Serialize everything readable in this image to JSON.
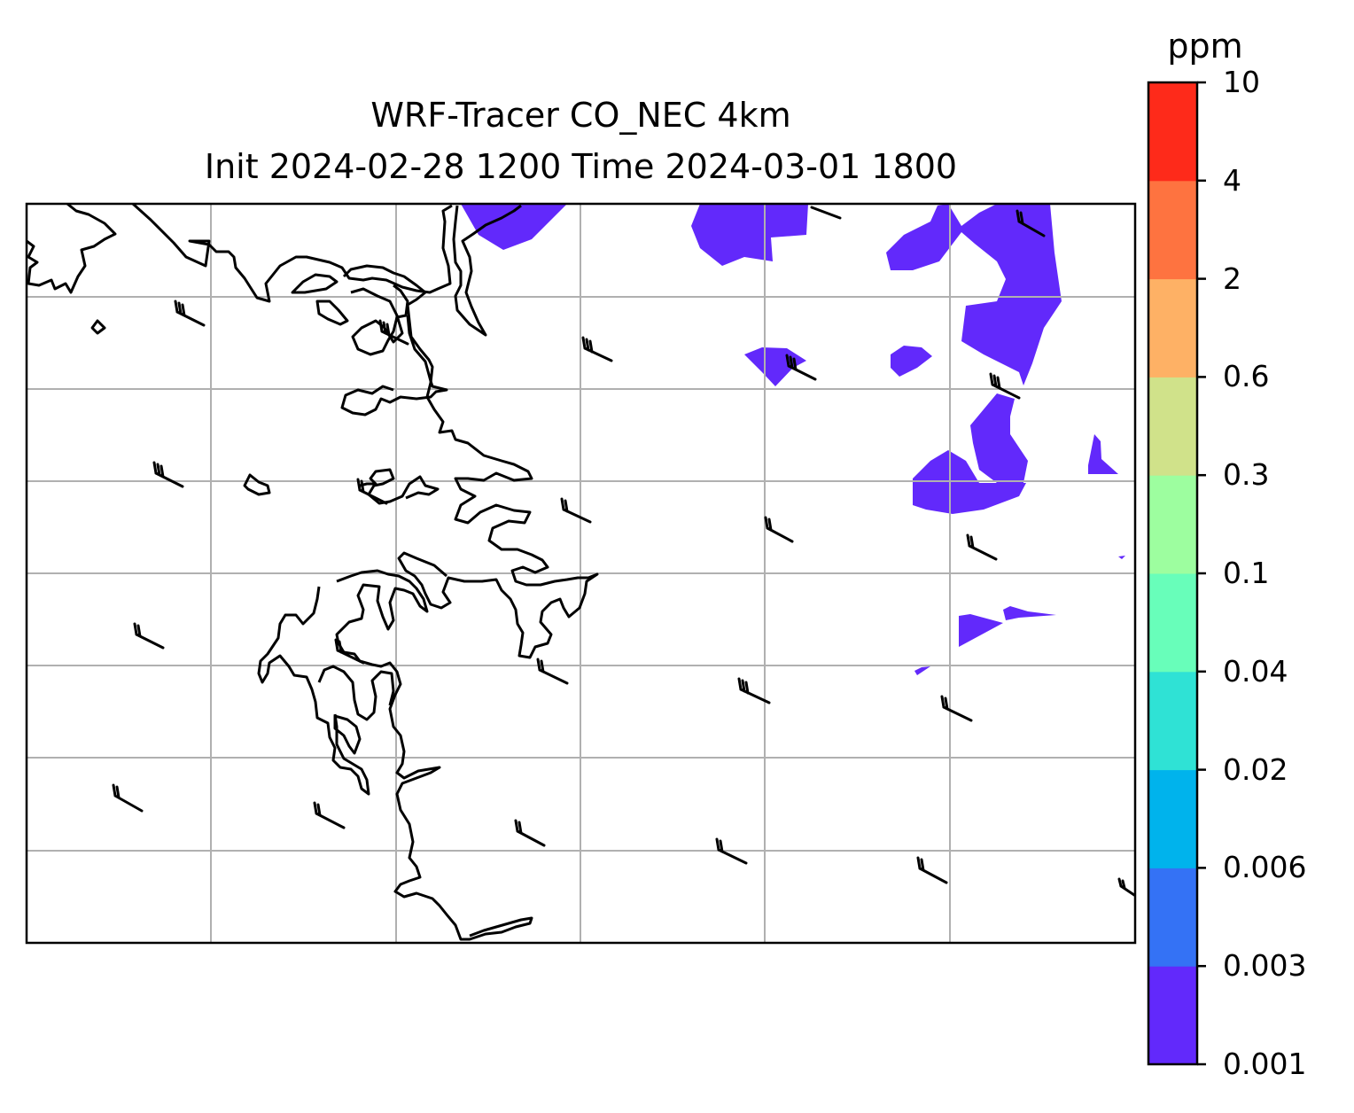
{
  "title_line1": "WRF-Tracer CO_NEC 4km",
  "title_line2": "Init 2024-02-28 1200 Time 2024-03-01 1800",
  "colorbar": {
    "label": "ppm",
    "ticks": [
      "0.001",
      "0.003",
      "0.006",
      "0.02",
      "0.04",
      "0.1",
      "0.3",
      "0.6",
      "2",
      "4",
      "10"
    ],
    "colors": [
      "#6229fb",
      "#3472f5",
      "#00b3ec",
      "#2fe2d5",
      "#68feba",
      "#9dfe9f",
      "#d0e28a",
      "#feb165",
      "#fe7340",
      "#fe2a1a"
    ]
  },
  "map": {
    "gridlines": true,
    "tracer_fill_color": "#6229fb",
    "coastline_color": "#000000"
  }
}
